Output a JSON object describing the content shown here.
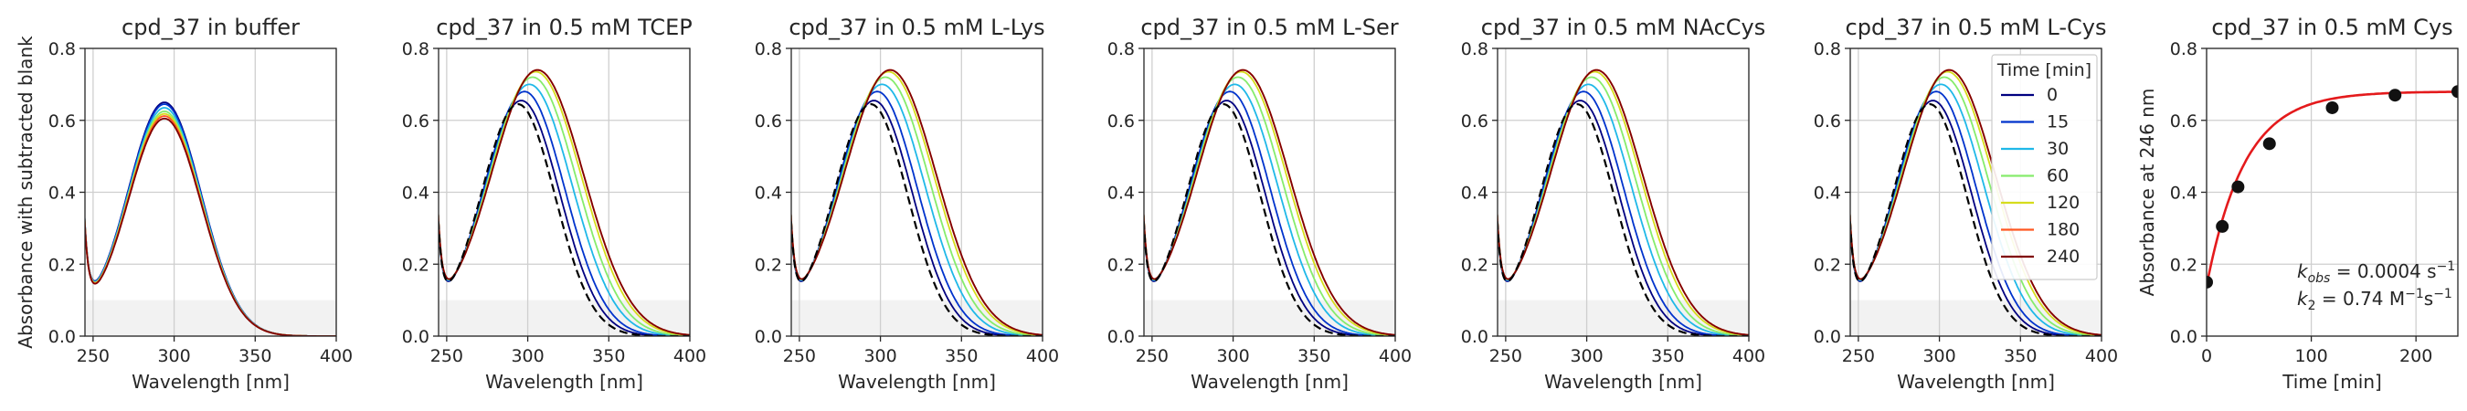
{
  "chart_data": [
    {
      "type": "line",
      "title": "cpd_37 in buffer",
      "xlabel": "Wavelength [nm]",
      "ylabel": "Absorbance with subtracted blank",
      "xlim": [
        245,
        400
      ],
      "ylim": [
        0.0,
        0.8
      ],
      "xticks": [
        "250",
        "300",
        "350",
        "400"
      ],
      "yticks": [
        "0.0",
        "0.2",
        "0.4",
        "0.6",
        "0.8"
      ],
      "shaded_region_y": [
        0.0,
        0.1
      ],
      "series": [
        {
          "name": "0",
          "color": "#000080",
          "peak_nm": 294,
          "peak_abs": 0.65
        },
        {
          "name": "15",
          "color": "#0033cc",
          "peak_nm": 294,
          "peak_abs": 0.645
        },
        {
          "name": "30",
          "color": "#1fb8e8",
          "peak_nm": 294,
          "peak_abs": 0.635
        },
        {
          "name": "60",
          "color": "#86ec6c",
          "peak_nm": 294,
          "peak_abs": 0.625
        },
        {
          "name": "120",
          "color": "#d6dc1d",
          "peak_nm": 294,
          "peak_abs": 0.618
        },
        {
          "name": "180",
          "color": "#ff5722",
          "peak_nm": 294,
          "peak_abs": 0.612
        },
        {
          "name": "240",
          "color": "#800000",
          "peak_nm": 294,
          "peak_abs": 0.605
        }
      ]
    },
    {
      "type": "line",
      "title": "cpd_37 in 0.5 mM TCEP",
      "xlabel": "Wavelength [nm]",
      "ylabel": "",
      "xlim": [
        245,
        400
      ],
      "ylim": [
        0.0,
        0.8
      ],
      "xticks": [
        "250",
        "300",
        "350",
        "400"
      ],
      "yticks": [
        "0.0",
        "0.2",
        "0.4",
        "0.6",
        "0.8"
      ],
      "shaded_region_y": [
        0.0,
        0.1
      ],
      "reference_dashed": {
        "peak_nm": 294,
        "peak_abs": 0.645
      },
      "series": [
        {
          "name": "0",
          "color": "#000080",
          "peak_nm": 296,
          "peak_abs": 0.655
        },
        {
          "name": "15",
          "color": "#0033cc",
          "peak_nm": 298,
          "peak_abs": 0.68
        },
        {
          "name": "30",
          "color": "#1fb8e8",
          "peak_nm": 301,
          "peak_abs": 0.7
        },
        {
          "name": "60",
          "color": "#86ec6c",
          "peak_nm": 303,
          "peak_abs": 0.72
        },
        {
          "name": "120",
          "color": "#d6dc1d",
          "peak_nm": 305,
          "peak_abs": 0.735
        },
        {
          "name": "180",
          "color": "#ff5722",
          "peak_nm": 306,
          "peak_abs": 0.74
        },
        {
          "name": "240",
          "color": "#800000",
          "peak_nm": 306,
          "peak_abs": 0.74
        }
      ]
    },
    {
      "type": "line",
      "title": "cpd_37 in 0.5 mM L-Lys",
      "xlabel": "Wavelength [nm]",
      "ylabel": "",
      "xlim": [
        245,
        400
      ],
      "ylim": [
        0.0,
        0.8
      ],
      "xticks": [
        "250",
        "300",
        "350",
        "400"
      ],
      "yticks": [
        "0.0",
        "0.2",
        "0.4",
        "0.6",
        "0.8"
      ],
      "shaded_region_y": [
        0.0,
        0.1
      ],
      "reference_dashed": {
        "peak_nm": 294,
        "peak_abs": 0.645
      },
      "series": [
        {
          "name": "0",
          "color": "#000080",
          "peak_nm": 296,
          "peak_abs": 0.655
        },
        {
          "name": "15",
          "color": "#0033cc",
          "peak_nm": 298,
          "peak_abs": 0.68
        },
        {
          "name": "30",
          "color": "#1fb8e8",
          "peak_nm": 301,
          "peak_abs": 0.7
        },
        {
          "name": "60",
          "color": "#86ec6c",
          "peak_nm": 303,
          "peak_abs": 0.72
        },
        {
          "name": "120",
          "color": "#d6dc1d",
          "peak_nm": 305,
          "peak_abs": 0.735
        },
        {
          "name": "180",
          "color": "#ff5722",
          "peak_nm": 306,
          "peak_abs": 0.74
        },
        {
          "name": "240",
          "color": "#800000",
          "peak_nm": 306,
          "peak_abs": 0.74
        }
      ]
    },
    {
      "type": "line",
      "title": "cpd_37 in 0.5 mM L-Ser",
      "xlabel": "Wavelength [nm]",
      "ylabel": "",
      "xlim": [
        245,
        400
      ],
      "ylim": [
        0.0,
        0.8
      ],
      "xticks": [
        "250",
        "300",
        "350",
        "400"
      ],
      "yticks": [
        "0.0",
        "0.2",
        "0.4",
        "0.6",
        "0.8"
      ],
      "shaded_region_y": [
        0.0,
        0.1
      ],
      "reference_dashed": {
        "peak_nm": 294,
        "peak_abs": 0.645
      },
      "series": [
        {
          "name": "0",
          "color": "#000080",
          "peak_nm": 296,
          "peak_abs": 0.655
        },
        {
          "name": "15",
          "color": "#0033cc",
          "peak_nm": 298,
          "peak_abs": 0.68
        },
        {
          "name": "30",
          "color": "#1fb8e8",
          "peak_nm": 301,
          "peak_abs": 0.7
        },
        {
          "name": "60",
          "color": "#86ec6c",
          "peak_nm": 303,
          "peak_abs": 0.72
        },
        {
          "name": "120",
          "color": "#d6dc1d",
          "peak_nm": 305,
          "peak_abs": 0.735
        },
        {
          "name": "180",
          "color": "#ff5722",
          "peak_nm": 306,
          "peak_abs": 0.74
        },
        {
          "name": "240",
          "color": "#800000",
          "peak_nm": 306,
          "peak_abs": 0.74
        }
      ]
    },
    {
      "type": "line",
      "title": "cpd_37 in 0.5 mM NAcCys",
      "xlabel": "Wavelength [nm]",
      "ylabel": "",
      "xlim": [
        245,
        400
      ],
      "ylim": [
        0.0,
        0.8
      ],
      "xticks": [
        "250",
        "300",
        "350",
        "400"
      ],
      "yticks": [
        "0.0",
        "0.2",
        "0.4",
        "0.6",
        "0.8"
      ],
      "shaded_region_y": [
        0.0,
        0.1
      ],
      "reference_dashed": {
        "peak_nm": 294,
        "peak_abs": 0.645
      },
      "series": [
        {
          "name": "0",
          "color": "#000080",
          "peak_nm": 296,
          "peak_abs": 0.655
        },
        {
          "name": "15",
          "color": "#0033cc",
          "peak_nm": 298,
          "peak_abs": 0.68
        },
        {
          "name": "30",
          "color": "#1fb8e8",
          "peak_nm": 301,
          "peak_abs": 0.7
        },
        {
          "name": "60",
          "color": "#86ec6c",
          "peak_nm": 303,
          "peak_abs": 0.72
        },
        {
          "name": "120",
          "color": "#d6dc1d",
          "peak_nm": 305,
          "peak_abs": 0.735
        },
        {
          "name": "180",
          "color": "#ff5722",
          "peak_nm": 306,
          "peak_abs": 0.74
        },
        {
          "name": "240",
          "color": "#800000",
          "peak_nm": 306,
          "peak_abs": 0.74
        }
      ]
    },
    {
      "type": "line",
      "title": "cpd_37 in 0.5 mM L-Cys",
      "xlabel": "Wavelength [nm]",
      "ylabel": "",
      "xlim": [
        245,
        400
      ],
      "ylim": [
        0.0,
        0.8
      ],
      "xticks": [
        "250",
        "300",
        "350",
        "400"
      ],
      "yticks": [
        "0.0",
        "0.2",
        "0.4",
        "0.6",
        "0.8"
      ],
      "shaded_region_y": [
        0.0,
        0.1
      ],
      "reference_dashed": {
        "peak_nm": 294,
        "peak_abs": 0.645
      },
      "legend": {
        "title": "Time [min]",
        "placement": "upper-right"
      },
      "series": [
        {
          "name": "0",
          "color": "#000080",
          "peak_nm": 296,
          "peak_abs": 0.655
        },
        {
          "name": "15",
          "color": "#0033cc",
          "peak_nm": 298,
          "peak_abs": 0.68
        },
        {
          "name": "30",
          "color": "#1fb8e8",
          "peak_nm": 301,
          "peak_abs": 0.7
        },
        {
          "name": "60",
          "color": "#86ec6c",
          "peak_nm": 303,
          "peak_abs": 0.72
        },
        {
          "name": "120",
          "color": "#d6dc1d",
          "peak_nm": 305,
          "peak_abs": 0.735
        },
        {
          "name": "180",
          "color": "#ff5722",
          "peak_nm": 306,
          "peak_abs": 0.74
        },
        {
          "name": "240",
          "color": "#800000",
          "peak_nm": 306,
          "peak_abs": 0.74
        }
      ]
    },
    {
      "type": "scatter",
      "title": "cpd_37 in 0.5 mM Cys",
      "xlabel": "Time [min]",
      "ylabel": "Absorbance at 246 nm",
      "xlim": [
        0,
        240
      ],
      "ylim": [
        0.0,
        0.8
      ],
      "xticks": [
        "0",
        "100",
        "200"
      ],
      "yticks": [
        "0.0",
        "0.2",
        "0.4",
        "0.6",
        "0.8"
      ],
      "points": [
        {
          "x": 0,
          "y": 0.15
        },
        {
          "x": 15,
          "y": 0.305
        },
        {
          "x": 30,
          "y": 0.415
        },
        {
          "x": 60,
          "y": 0.535
        },
        {
          "x": 120,
          "y": 0.635
        },
        {
          "x": 180,
          "y": 0.67
        },
        {
          "x": 240,
          "y": 0.68
        }
      ],
      "fit_color": "#e41a1c",
      "annotations": [
        "k_obs = 0.0004 s^-1",
        "k_2 = 0.74 M^-1s^-1"
      ],
      "annotation_parts": {
        "kobs_sym": "k",
        "kobs_sub": "obs",
        "kobs_rest": " = 0.0004 s",
        "kobs_exp": "−1",
        "k2_sym": "k",
        "k2_sub": "2",
        "k2_mid": " = 0.74 M",
        "k2_exp1": "−1",
        "k2_s": "s",
        "k2_exp2": "−1"
      }
    }
  ]
}
